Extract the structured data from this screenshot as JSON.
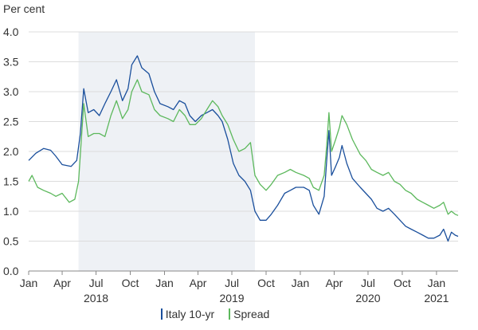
{
  "chart_data": {
    "type": "line",
    "y_unit_label": "Per cent",
    "ylim": [
      0.0,
      4.0
    ],
    "y_ticks": [
      "0.0",
      "0.5",
      "1.0",
      "1.5",
      "2.0",
      "2.5",
      "3.0",
      "3.5",
      "4.0"
    ],
    "x_range": [
      "2018-01-01",
      "2021-02-28"
    ],
    "x_month_ticks": [
      {
        "label": "Jan",
        "date": "2018-01-01"
      },
      {
        "label": "Apr",
        "date": "2018-04-01"
      },
      {
        "label": "Jul",
        "date": "2018-07-01"
      },
      {
        "label": "Oct",
        "date": "2018-10-01"
      },
      {
        "label": "Jan",
        "date": "2019-01-01"
      },
      {
        "label": "Apr",
        "date": "2019-04-01"
      },
      {
        "label": "Jul",
        "date": "2019-07-01"
      },
      {
        "label": "Oct",
        "date": "2019-10-01"
      },
      {
        "label": "Jan",
        "date": "2020-01-01"
      },
      {
        "label": "Apr",
        "date": "2020-04-01"
      },
      {
        "label": "Jul",
        "date": "2020-07-01"
      },
      {
        "label": "Oct",
        "date": "2020-10-01"
      },
      {
        "label": "Jan",
        "date": "2021-01-01"
      }
    ],
    "x_year_labels": [
      {
        "label": "2018",
        "date": "2018-07-01"
      },
      {
        "label": "2019",
        "date": "2019-07-01"
      },
      {
        "label": "2020",
        "date": "2020-07-01"
      },
      {
        "label": "2021",
        "date": "2021-01-01"
      }
    ],
    "shaded_period": {
      "start": "2018-05-15",
      "end": "2019-09-01",
      "color": "#eef1f5"
    },
    "grid": true,
    "legend_position": "bottom",
    "series": [
      {
        "name": "Italy 10-yr",
        "color": "#1a4f9c",
        "points": [
          [
            "2018-01-01",
            1.85
          ],
          [
            "2018-01-20",
            1.97
          ],
          [
            "2018-02-10",
            2.05
          ],
          [
            "2018-03-01",
            2.02
          ],
          [
            "2018-03-15",
            1.92
          ],
          [
            "2018-04-01",
            1.78
          ],
          [
            "2018-04-25",
            1.75
          ],
          [
            "2018-05-10",
            1.85
          ],
          [
            "2018-05-20",
            2.3
          ],
          [
            "2018-05-29",
            3.05
          ],
          [
            "2018-06-10",
            2.65
          ],
          [
            "2018-06-25",
            2.7
          ],
          [
            "2018-07-10",
            2.6
          ],
          [
            "2018-07-25",
            2.8
          ],
          [
            "2018-08-10",
            3.0
          ],
          [
            "2018-08-25",
            3.2
          ],
          [
            "2018-09-10",
            2.85
          ],
          [
            "2018-09-25",
            3.05
          ],
          [
            "2018-10-05",
            3.45
          ],
          [
            "2018-10-20",
            3.6
          ],
          [
            "2018-11-01",
            3.4
          ],
          [
            "2018-11-20",
            3.3
          ],
          [
            "2018-12-05",
            3.0
          ],
          [
            "2018-12-20",
            2.8
          ],
          [
            "2019-01-10",
            2.75
          ],
          [
            "2019-01-25",
            2.7
          ],
          [
            "2019-02-10",
            2.85
          ],
          [
            "2019-02-25",
            2.8
          ],
          [
            "2019-03-10",
            2.6
          ],
          [
            "2019-03-25",
            2.5
          ],
          [
            "2019-04-10",
            2.6
          ],
          [
            "2019-04-25",
            2.65
          ],
          [
            "2019-05-10",
            2.7
          ],
          [
            "2019-05-25",
            2.6
          ],
          [
            "2019-06-05",
            2.5
          ],
          [
            "2019-06-20",
            2.2
          ],
          [
            "2019-07-05",
            1.8
          ],
          [
            "2019-07-20",
            1.6
          ],
          [
            "2019-08-05",
            1.5
          ],
          [
            "2019-08-20",
            1.35
          ],
          [
            "2019-09-01",
            1.0
          ],
          [
            "2019-09-15",
            0.85
          ],
          [
            "2019-10-01",
            0.85
          ],
          [
            "2019-10-15",
            0.95
          ],
          [
            "2019-11-01",
            1.1
          ],
          [
            "2019-11-20",
            1.3
          ],
          [
            "2019-12-05",
            1.35
          ],
          [
            "2019-12-20",
            1.4
          ],
          [
            "2020-01-10",
            1.4
          ],
          [
            "2020-01-25",
            1.35
          ],
          [
            "2020-02-05",
            1.1
          ],
          [
            "2020-02-20",
            0.95
          ],
          [
            "2020-03-05",
            1.25
          ],
          [
            "2020-03-12",
            1.85
          ],
          [
            "2020-03-18",
            2.35
          ],
          [
            "2020-03-25",
            1.6
          ],
          [
            "2020-04-05",
            1.75
          ],
          [
            "2020-04-15",
            1.9
          ],
          [
            "2020-04-22",
            2.1
          ],
          [
            "2020-05-05",
            1.8
          ],
          [
            "2020-05-20",
            1.55
          ],
          [
            "2020-06-10",
            1.4
          ],
          [
            "2020-06-25",
            1.3
          ],
          [
            "2020-07-10",
            1.2
          ],
          [
            "2020-07-25",
            1.05
          ],
          [
            "2020-08-10",
            1.0
          ],
          [
            "2020-08-25",
            1.05
          ],
          [
            "2020-09-10",
            0.95
          ],
          [
            "2020-09-25",
            0.85
          ],
          [
            "2020-10-10",
            0.75
          ],
          [
            "2020-10-25",
            0.7
          ],
          [
            "2020-11-10",
            0.65
          ],
          [
            "2020-11-25",
            0.6
          ],
          [
            "2020-12-10",
            0.55
          ],
          [
            "2020-12-25",
            0.55
          ],
          [
            "2021-01-10",
            0.6
          ],
          [
            "2021-01-20",
            0.7
          ],
          [
            "2021-02-01",
            0.5
          ],
          [
            "2021-02-10",
            0.65
          ],
          [
            "2021-02-20",
            0.6
          ],
          [
            "2021-02-28",
            0.58
          ]
        ]
      },
      {
        "name": "Spread",
        "color": "#5cb85c",
        "points": [
          [
            "2018-01-01",
            1.5
          ],
          [
            "2018-01-10",
            1.6
          ],
          [
            "2018-01-25",
            1.4
          ],
          [
            "2018-02-10",
            1.35
          ],
          [
            "2018-03-01",
            1.3
          ],
          [
            "2018-03-15",
            1.25
          ],
          [
            "2018-04-01",
            1.3
          ],
          [
            "2018-04-20",
            1.15
          ],
          [
            "2018-05-05",
            1.2
          ],
          [
            "2018-05-15",
            1.5
          ],
          [
            "2018-05-29",
            2.8
          ],
          [
            "2018-06-10",
            2.25
          ],
          [
            "2018-06-25",
            2.3
          ],
          [
            "2018-07-10",
            2.3
          ],
          [
            "2018-07-25",
            2.25
          ],
          [
            "2018-08-10",
            2.6
          ],
          [
            "2018-08-25",
            2.85
          ],
          [
            "2018-09-10",
            2.55
          ],
          [
            "2018-09-25",
            2.7
          ],
          [
            "2018-10-05",
            3.0
          ],
          [
            "2018-10-20",
            3.2
          ],
          [
            "2018-11-01",
            3.0
          ],
          [
            "2018-11-20",
            2.95
          ],
          [
            "2018-12-05",
            2.7
          ],
          [
            "2018-12-20",
            2.6
          ],
          [
            "2019-01-10",
            2.55
          ],
          [
            "2019-01-25",
            2.5
          ],
          [
            "2019-02-10",
            2.7
          ],
          [
            "2019-02-25",
            2.6
          ],
          [
            "2019-03-10",
            2.45
          ],
          [
            "2019-03-25",
            2.45
          ],
          [
            "2019-04-10",
            2.55
          ],
          [
            "2019-04-25",
            2.7
          ],
          [
            "2019-05-10",
            2.85
          ],
          [
            "2019-05-25",
            2.75
          ],
          [
            "2019-06-05",
            2.6
          ],
          [
            "2019-06-20",
            2.45
          ],
          [
            "2019-07-05",
            2.2
          ],
          [
            "2019-07-20",
            2.0
          ],
          [
            "2019-08-05",
            2.05
          ],
          [
            "2019-08-20",
            2.15
          ],
          [
            "2019-09-01",
            1.6
          ],
          [
            "2019-09-15",
            1.45
          ],
          [
            "2019-10-01",
            1.35
          ],
          [
            "2019-10-15",
            1.45
          ],
          [
            "2019-11-01",
            1.6
          ],
          [
            "2019-11-20",
            1.65
          ],
          [
            "2019-12-05",
            1.7
          ],
          [
            "2019-12-20",
            1.65
          ],
          [
            "2020-01-10",
            1.6
          ],
          [
            "2020-01-25",
            1.55
          ],
          [
            "2020-02-05",
            1.4
          ],
          [
            "2020-02-20",
            1.35
          ],
          [
            "2020-03-05",
            1.6
          ],
          [
            "2020-03-12",
            2.1
          ],
          [
            "2020-03-18",
            2.65
          ],
          [
            "2020-03-25",
            2.0
          ],
          [
            "2020-04-05",
            2.2
          ],
          [
            "2020-04-15",
            2.4
          ],
          [
            "2020-04-22",
            2.6
          ],
          [
            "2020-05-05",
            2.45
          ],
          [
            "2020-05-20",
            2.2
          ],
          [
            "2020-06-10",
            1.95
          ],
          [
            "2020-06-25",
            1.85
          ],
          [
            "2020-07-10",
            1.7
          ],
          [
            "2020-07-25",
            1.65
          ],
          [
            "2020-08-10",
            1.6
          ],
          [
            "2020-08-25",
            1.65
          ],
          [
            "2020-09-10",
            1.5
          ],
          [
            "2020-09-25",
            1.45
          ],
          [
            "2020-10-10",
            1.35
          ],
          [
            "2020-10-25",
            1.3
          ],
          [
            "2020-11-10",
            1.2
          ],
          [
            "2020-11-25",
            1.15
          ],
          [
            "2020-12-10",
            1.1
          ],
          [
            "2020-12-25",
            1.05
          ],
          [
            "2021-01-10",
            1.1
          ],
          [
            "2021-01-20",
            1.15
          ],
          [
            "2021-02-01",
            0.95
          ],
          [
            "2021-02-10",
            1.0
          ],
          [
            "2021-02-20",
            0.95
          ],
          [
            "2021-02-28",
            0.93
          ]
        ]
      }
    ]
  }
}
